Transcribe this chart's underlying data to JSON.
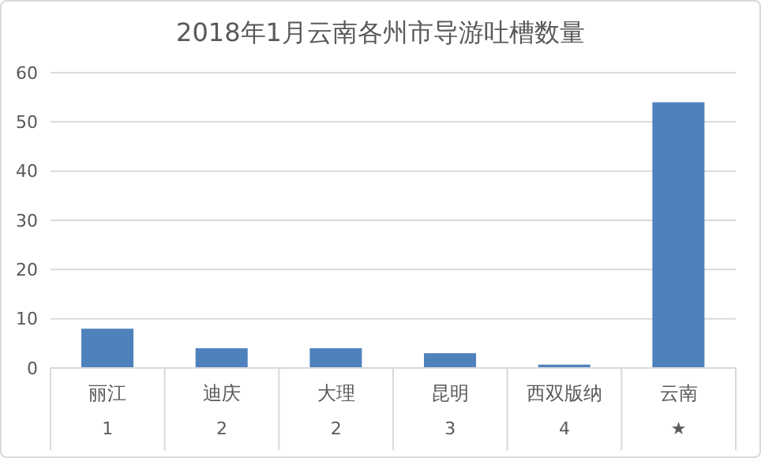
{
  "chart_data": {
    "type": "bar",
    "title": "2018年1月云南各州市导游吐槽数量",
    "categories": [
      "丽江\n1",
      "迪庆\n2",
      "大理\n2",
      "昆明\n3",
      "西双版纳\n4",
      "云南\n★"
    ],
    "values": [
      8,
      4,
      4,
      3,
      0.7,
      54
    ],
    "color": "#4f81bd",
    "ylim": [
      0,
      60
    ],
    "yticks": [
      0,
      10,
      20,
      30,
      40,
      50,
      60
    ],
    "grid": "y"
  }
}
